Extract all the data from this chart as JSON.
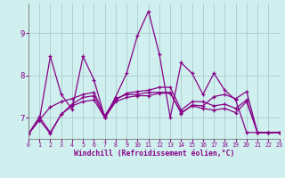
{
  "xlabel": "Windchill (Refroidissement éolien,°C)",
  "bg_color": "#cff0ee",
  "line_color": "#880088",
  "grid_color": "#aacccc",
  "x_ticks": [
    0,
    1,
    2,
    3,
    4,
    5,
    6,
    7,
    8,
    9,
    10,
    11,
    12,
    13,
    14,
    15,
    16,
    17,
    18,
    19,
    20,
    21,
    22,
    23
  ],
  "x_tick_labels": [
    "0",
    "1",
    "2",
    "3",
    "4",
    "5",
    "6",
    "7",
    "8",
    "9",
    "10",
    "11",
    "12",
    "13",
    "14",
    "15",
    "16",
    "17",
    "18",
    "19",
    "20",
    "21",
    "22",
    "23"
  ],
  "y_ticks": [
    7,
    8,
    9
  ],
  "xlim": [
    0,
    23
  ],
  "ylim": [
    6.5,
    9.7
  ],
  "series": [
    [
      6.62,
      6.95,
      8.45,
      7.55,
      7.2,
      8.45,
      7.9,
      7.0,
      7.5,
      8.05,
      8.95,
      9.52,
      8.5,
      7.0,
      8.3,
      8.05,
      7.55,
      8.05,
      7.65,
      7.42,
      6.65,
      6.65,
      6.65,
      6.65
    ],
    [
      6.62,
      6.95,
      7.25,
      7.38,
      7.45,
      7.55,
      7.6,
      7.05,
      7.45,
      7.55,
      7.55,
      7.6,
      7.6,
      7.6,
      7.1,
      7.3,
      7.28,
      7.5,
      7.55,
      7.45,
      7.62,
      6.65,
      6.65,
      6.65
    ],
    [
      6.62,
      7.02,
      6.65,
      7.08,
      7.32,
      7.48,
      7.52,
      7.0,
      7.42,
      7.58,
      7.62,
      7.65,
      7.72,
      7.72,
      7.18,
      7.38,
      7.38,
      7.28,
      7.32,
      7.22,
      7.42,
      6.65,
      6.65,
      6.65
    ],
    [
      6.62,
      6.95,
      6.62,
      7.08,
      7.28,
      7.38,
      7.42,
      7.0,
      7.38,
      7.48,
      7.52,
      7.52,
      7.58,
      7.58,
      7.12,
      7.28,
      7.22,
      7.18,
      7.22,
      7.12,
      7.38,
      6.65,
      6.65,
      6.65
    ]
  ]
}
